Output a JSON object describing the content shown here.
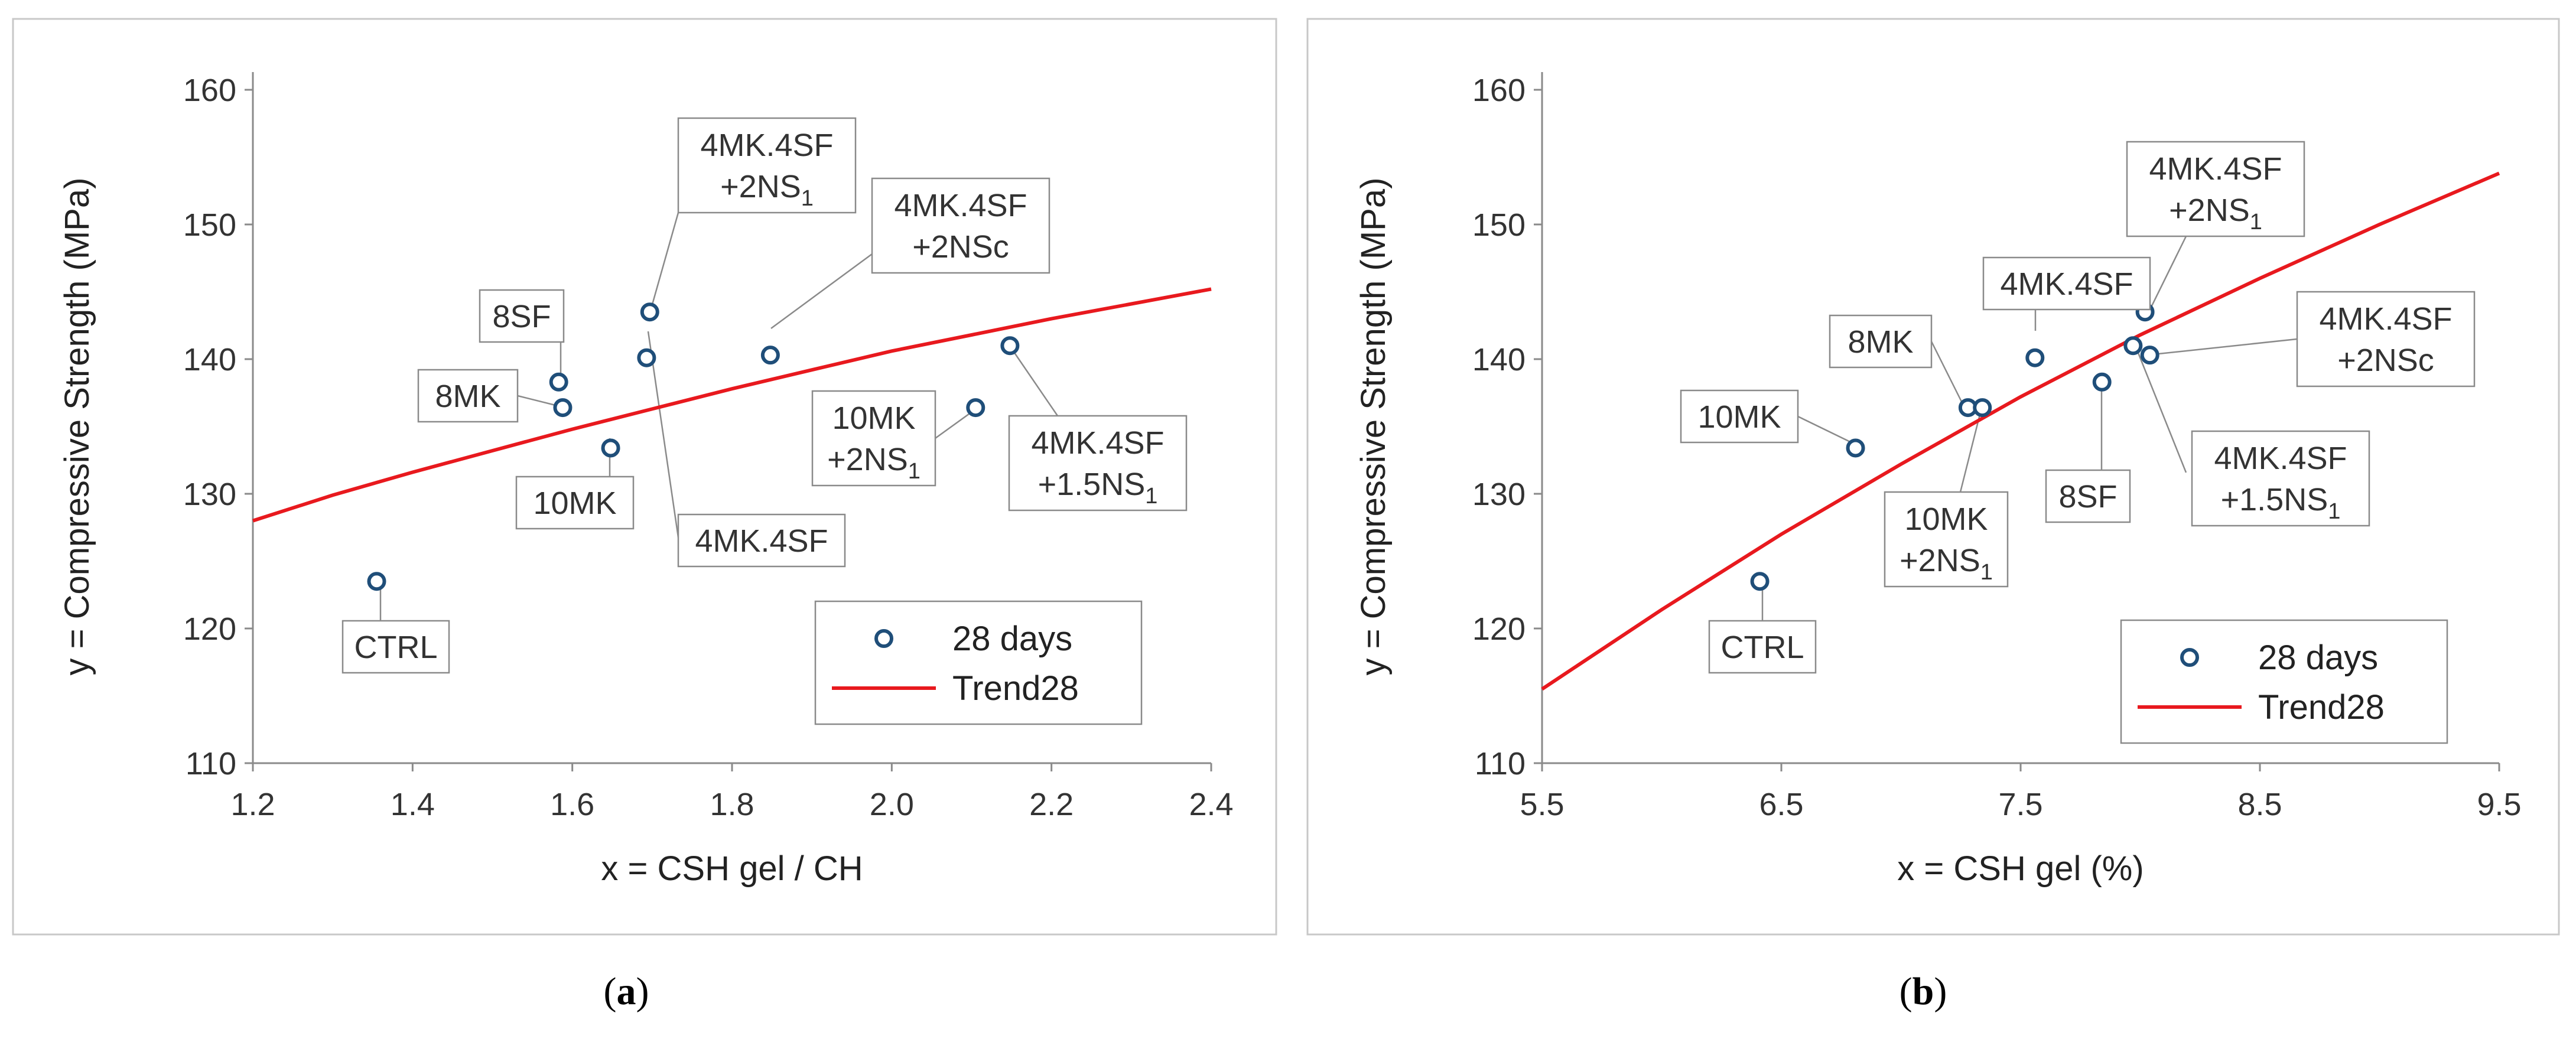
{
  "figure": {
    "panels": [
      {
        "label_open": "(",
        "label_letter": "a",
        "label_close": ")"
      },
      {
        "label_open": "(",
        "label_letter": "b",
        "label_close": ")"
      }
    ]
  },
  "chart_data": [
    {
      "type": "scatter",
      "panel": "a",
      "xlabel": "x = CSH gel / CH",
      "ylabel": "y = Compressive Strength (MPa)",
      "xlim": [
        1.2,
        2.4
      ],
      "ylim": [
        110,
        160
      ],
      "xticks": [
        "1.2",
        "1.4",
        "1.6",
        "1.8",
        "2.0",
        "2.2",
        "2.4"
      ],
      "yticks": [
        "110",
        "120",
        "130",
        "140",
        "150",
        "160"
      ],
      "legend_position": "bottom-right",
      "series": [
        {
          "name": "28 days",
          "marker": "circle-open",
          "color": "#1F4E79",
          "points": [
            {
              "label": "CTRL",
              "x": 1.355,
              "y": 123.5
            },
            {
              "label": "8SF",
              "x": 1.583,
              "y": 138.3
            },
            {
              "label": "8MK",
              "x": 1.588,
              "y": 136.4
            },
            {
              "label": "10MK",
              "x": 1.648,
              "y": 133.4
            },
            {
              "label": "4MK.4SF +2NS1",
              "x": 1.697,
              "y": 143.5
            },
            {
              "label": "4MK.4SF",
              "x": 1.693,
              "y": 140.1
            },
            {
              "label": "4MK.4SF +2NSc",
              "x": 1.848,
              "y": 140.3
            },
            {
              "label": "10MK +2NS1",
              "x": 2.105,
              "y": 136.4
            },
            {
              "label": "4MK.4SF +1.5NS1",
              "x": 2.148,
              "y": 141.0
            }
          ]
        },
        {
          "name": "Trend28",
          "color": "#E8191E",
          "x": [
            1.2,
            1.3,
            1.4,
            1.5,
            1.6,
            1.7,
            1.8,
            1.9,
            2.0,
            2.1,
            2.2,
            2.3,
            2.4
          ],
          "y": [
            128.0,
            129.9,
            131.6,
            133.2,
            134.8,
            136.3,
            137.8,
            139.2,
            140.6,
            141.8,
            143.0,
            144.1,
            145.2
          ]
        }
      ],
      "annotations": [
        {
          "lines": [
            {
              "text": "CTRL",
              "sub": ""
            }
          ]
        },
        {
          "lines": [
            {
              "text": "8SF",
              "sub": ""
            }
          ]
        },
        {
          "lines": [
            {
              "text": "8MK",
              "sub": ""
            }
          ]
        },
        {
          "lines": [
            {
              "text": "10MK",
              "sub": ""
            }
          ]
        },
        {
          "lines": [
            {
              "text": "4MK.4SF",
              "sub": ""
            },
            {
              "text": "+2NS",
              "sub": "1"
            }
          ]
        },
        {
          "lines": [
            {
              "text": "4MK.4SF",
              "sub": ""
            }
          ]
        },
        {
          "lines": [
            {
              "text": "4MK.4SF",
              "sub": ""
            },
            {
              "text": "+2NSc",
              "sub": ""
            }
          ]
        },
        {
          "lines": [
            {
              "text": "10MK",
              "sub": ""
            },
            {
              "text": "+2NS",
              "sub": "1"
            }
          ]
        },
        {
          "lines": [
            {
              "text": "4MK.4SF",
              "sub": ""
            },
            {
              "text": "+1.5NS",
              "sub": "1"
            }
          ]
        }
      ]
    },
    {
      "type": "scatter",
      "panel": "b",
      "xlabel": "x = CSH gel (%)",
      "ylabel": "y = Compressive Strength (MPa)",
      "xlim": [
        5.5,
        9.5
      ],
      "ylim": [
        110,
        160
      ],
      "xticks": [
        "5.5",
        "6.5",
        "7.5",
        "8.5",
        "9.5"
      ],
      "yticks": [
        "110",
        "120",
        "130",
        "140",
        "150",
        "160"
      ],
      "legend_position": "bottom-right",
      "series": [
        {
          "name": "28 days",
          "marker": "circle-open",
          "color": "#1F4E79",
          "points": [
            {
              "label": "CTRL",
              "x": 6.41,
              "y": 123.5
            },
            {
              "label": "10MK",
              "x": 6.81,
              "y": 133.4
            },
            {
              "label": "8MK",
              "x": 7.28,
              "y": 136.4
            },
            {
              "label": "10MK +2NS1",
              "x": 7.34,
              "y": 136.4
            },
            {
              "label": "4MK.4SF",
              "x": 7.56,
              "y": 140.1
            },
            {
              "label": "8SF",
              "x": 7.84,
              "y": 138.3
            },
            {
              "label": "4MK.4SF +1.5NS1",
              "x": 7.97,
              "y": 141.0
            },
            {
              "label": "4MK.4SF +2NS1",
              "x": 8.02,
              "y": 143.5
            },
            {
              "label": "4MK.4SF +2NSc",
              "x": 8.04,
              "y": 140.3
            }
          ]
        },
        {
          "name": "Trend28",
          "color": "#E8191E",
          "x": [
            5.5,
            6.0,
            6.5,
            7.0,
            7.5,
            8.0,
            8.5,
            9.0,
            9.5
          ],
          "y": [
            115.5,
            121.4,
            127.0,
            132.2,
            137.2,
            141.8,
            146.0,
            150.0,
            153.8
          ]
        }
      ],
      "annotations": [
        {
          "lines": [
            {
              "text": "CTRL",
              "sub": ""
            }
          ]
        },
        {
          "lines": [
            {
              "text": "10MK",
              "sub": ""
            }
          ]
        },
        {
          "lines": [
            {
              "text": "8MK",
              "sub": ""
            }
          ]
        },
        {
          "lines": [
            {
              "text": "10MK",
              "sub": ""
            },
            {
              "text": "+2NS",
              "sub": "1"
            }
          ]
        },
        {
          "lines": [
            {
              "text": "4MK.4SF",
              "sub": ""
            }
          ]
        },
        {
          "lines": [
            {
              "text": "8SF",
              "sub": ""
            }
          ]
        },
        {
          "lines": [
            {
              "text": "4MK.4SF",
              "sub": ""
            },
            {
              "text": "+1.5NS",
              "sub": "1"
            }
          ]
        },
        {
          "lines": [
            {
              "text": "4MK.4SF",
              "sub": ""
            },
            {
              "text": "+2NS",
              "sub": "1"
            }
          ]
        },
        {
          "lines": [
            {
              "text": "4MK.4SF",
              "sub": ""
            },
            {
              "text": "+2NSc",
              "sub": ""
            }
          ]
        }
      ]
    }
  ]
}
